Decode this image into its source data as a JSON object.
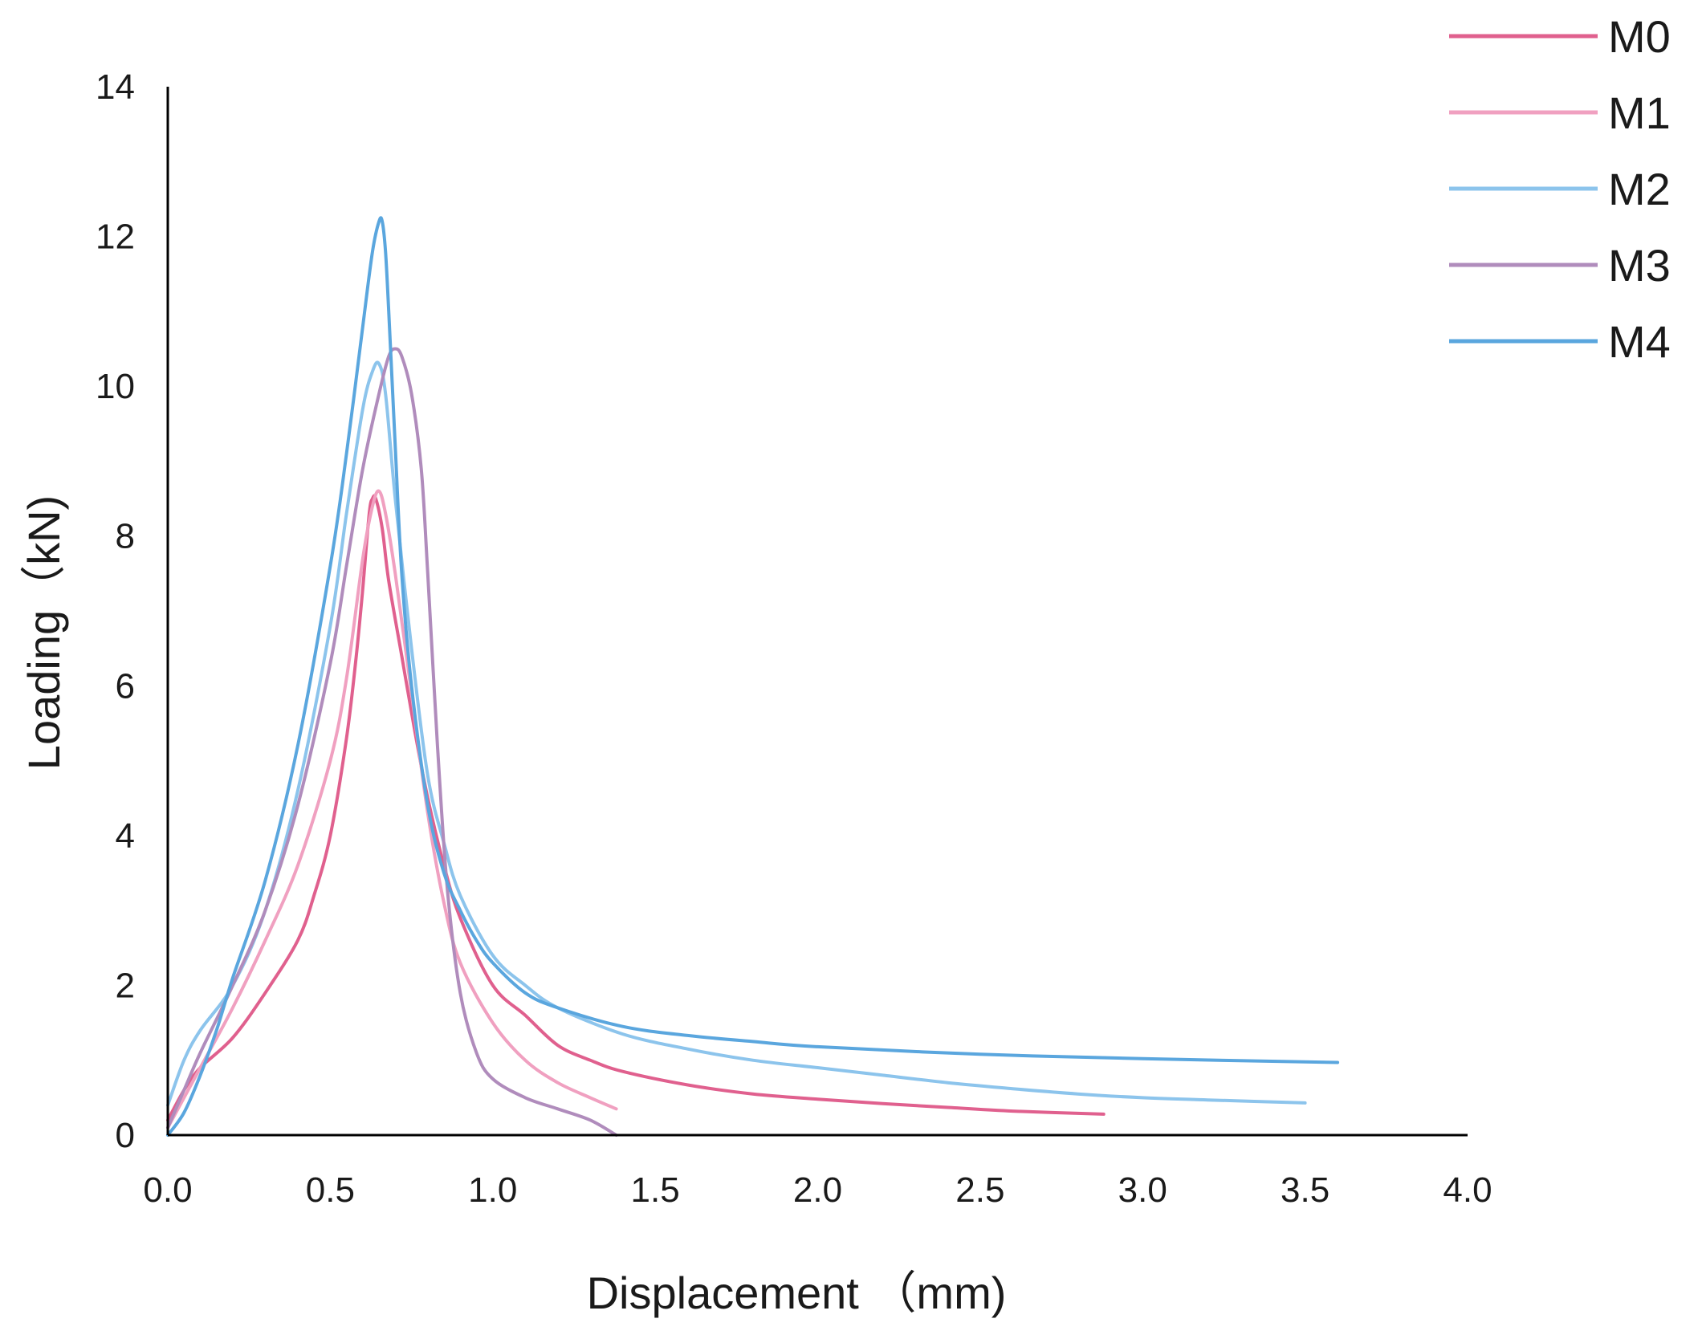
{
  "chart_data": {
    "type": "line",
    "title": "",
    "xlabel": "Displacement （mm)",
    "ylabel": "Loading（kN)",
    "xlim": [
      0,
      4.0
    ],
    "ylim": [
      0,
      14
    ],
    "xticks": [
      "0.0",
      "0.5",
      "1.0",
      "1.5",
      "2.0",
      "2.5",
      "3.0",
      "3.5",
      "4.0"
    ],
    "yticks": [
      "0",
      "2",
      "4",
      "6",
      "8",
      "10",
      "12",
      "14"
    ],
    "grid": false,
    "legend_position": "top-right",
    "series": [
      {
        "name": "M0",
        "color": "#e0608e",
        "x": [
          0.0,
          0.05,
          0.1,
          0.2,
          0.3,
          0.4,
          0.45,
          0.5,
          0.55,
          0.58,
          0.6,
          0.62,
          0.63,
          0.64,
          0.66,
          0.68,
          0.72,
          0.76,
          0.8,
          0.85,
          0.9,
          1.0,
          1.1,
          1.2,
          1.3,
          1.4,
          1.6,
          1.8,
          2.0,
          2.2,
          2.4,
          2.6,
          2.88
        ],
        "y": [
          0.2,
          0.6,
          0.9,
          1.3,
          1.9,
          2.6,
          3.2,
          4.0,
          5.3,
          6.4,
          7.3,
          8.3,
          8.5,
          8.5,
          8.1,
          7.4,
          6.4,
          5.4,
          4.5,
          3.6,
          2.9,
          2.0,
          1.6,
          1.2,
          1.0,
          0.85,
          0.67,
          0.55,
          0.48,
          0.42,
          0.37,
          0.32,
          0.28
        ]
      },
      {
        "name": "M1",
        "color": "#f0a0c0",
        "x": [
          0.0,
          0.05,
          0.1,
          0.2,
          0.3,
          0.4,
          0.5,
          0.55,
          0.6,
          0.63,
          0.65,
          0.67,
          0.7,
          0.75,
          0.8,
          0.85,
          0.9,
          1.0,
          1.1,
          1.2,
          1.3,
          1.38
        ],
        "y": [
          0.1,
          0.5,
          0.9,
          1.7,
          2.6,
          3.6,
          5.0,
          6.1,
          7.7,
          8.4,
          8.6,
          8.3,
          7.5,
          5.9,
          4.3,
          3.1,
          2.3,
          1.5,
          1.0,
          0.7,
          0.5,
          0.35
        ]
      },
      {
        "name": "M2",
        "color": "#8cc4ec",
        "x": [
          0.0,
          0.05,
          0.1,
          0.2,
          0.3,
          0.4,
          0.5,
          0.55,
          0.6,
          0.63,
          0.65,
          0.67,
          0.7,
          0.75,
          0.8,
          0.85,
          0.9,
          1.0,
          1.1,
          1.2,
          1.4,
          1.6,
          1.8,
          2.0,
          2.2,
          2.4,
          2.6,
          2.8,
          3.0,
          3.2,
          3.5
        ],
        "y": [
          0.4,
          1.0,
          1.4,
          2.0,
          3.0,
          4.6,
          6.8,
          8.3,
          9.7,
          10.2,
          10.3,
          9.9,
          8.5,
          6.5,
          4.8,
          3.9,
          3.2,
          2.4,
          2.0,
          1.7,
          1.35,
          1.15,
          1.0,
          0.9,
          0.8,
          0.7,
          0.62,
          0.55,
          0.5,
          0.47,
          0.43
        ]
      },
      {
        "name": "M3",
        "color": "#b08cbc",
        "x": [
          0.0,
          0.05,
          0.1,
          0.2,
          0.3,
          0.4,
          0.5,
          0.55,
          0.6,
          0.65,
          0.68,
          0.7,
          0.72,
          0.75,
          0.78,
          0.8,
          0.83,
          0.86,
          0.9,
          0.95,
          1.0,
          1.1,
          1.2,
          1.3,
          1.38
        ],
        "y": [
          0.1,
          0.6,
          1.1,
          2.0,
          3.0,
          4.4,
          6.3,
          7.6,
          8.9,
          9.9,
          10.4,
          10.5,
          10.4,
          9.9,
          8.9,
          7.5,
          5.2,
          3.3,
          1.9,
          1.1,
          0.75,
          0.5,
          0.35,
          0.2,
          0.0
        ]
      },
      {
        "name": "M4",
        "color": "#5aa6de",
        "x": [
          0.0,
          0.05,
          0.1,
          0.15,
          0.2,
          0.3,
          0.4,
          0.5,
          0.55,
          0.6,
          0.63,
          0.65,
          0.66,
          0.67,
          0.68,
          0.7,
          0.72,
          0.75,
          0.8,
          0.85,
          0.9,
          0.95,
          1.0,
          1.1,
          1.2,
          1.4,
          1.6,
          1.8,
          2.0,
          2.5,
          3.0,
          3.6
        ],
        "y": [
          0.0,
          0.3,
          0.8,
          1.4,
          2.1,
          3.4,
          5.2,
          7.6,
          9.1,
          10.8,
          11.8,
          12.2,
          12.2,
          11.8,
          11.0,
          9.2,
          7.5,
          6.0,
          4.4,
          3.5,
          3.0,
          2.6,
          2.3,
          1.9,
          1.7,
          1.45,
          1.33,
          1.25,
          1.18,
          1.08,
          1.02,
          0.97
        ]
      }
    ]
  }
}
